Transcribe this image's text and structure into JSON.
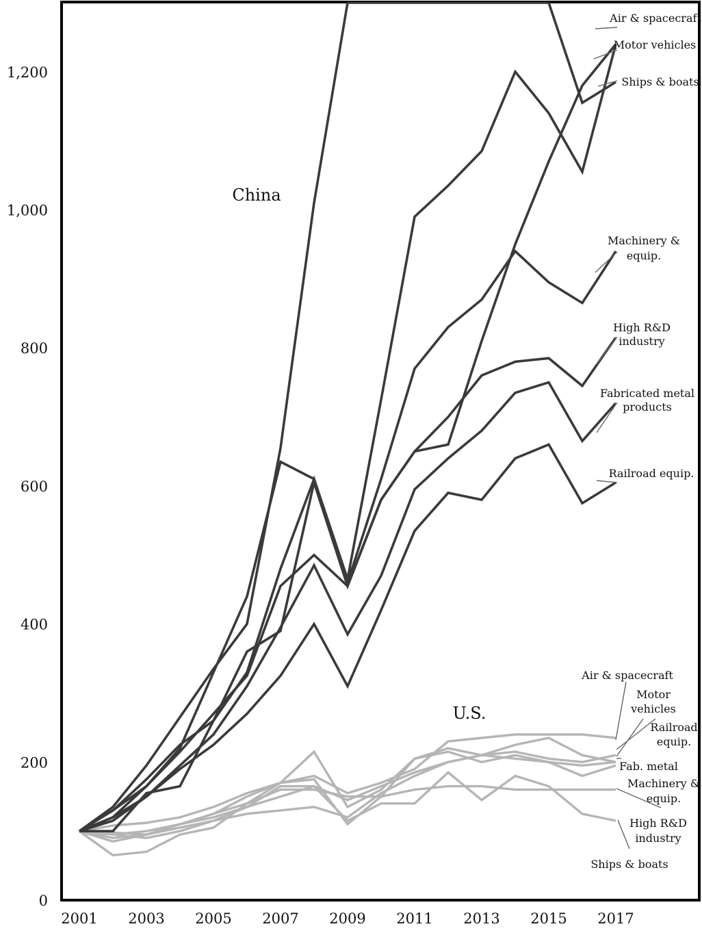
{
  "chart_data": {
    "type": "line",
    "x": [
      2001,
      2002,
      2003,
      2004,
      2005,
      2006,
      2007,
      2008,
      2009,
      2010,
      2011,
      2012,
      2013,
      2014,
      2015,
      2016,
      2017
    ],
    "xtick_labels": [
      "2001",
      "2003",
      "2005",
      "2007",
      "2009",
      "2011",
      "2013",
      "2015",
      "2017"
    ],
    "ytick_labels": [
      "0",
      "200",
      "400",
      "600",
      "800",
      "1,000",
      "1,200"
    ],
    "ylim": [
      0,
      1300
    ],
    "xlim": [
      2000.5,
      2019.2
    ],
    "group_labels": {
      "china": "China",
      "us": "U.S."
    },
    "colors": {
      "china": "#3a3a3a",
      "us": "#b5b5b5"
    },
    "series": [
      {
        "group": "china",
        "name": "Air & spacecraft",
        "values": [
          100,
          135,
          195,
          265,
          335,
          400,
          655,
          1010,
          1300,
          1300,
          1300,
          1300,
          1300,
          1300,
          1300,
          1155,
          1185
        ]
      },
      {
        "group": "china",
        "name": "Motor vehicles",
        "values": [
          100,
          100,
          155,
          165,
          260,
          360,
          390,
          605,
          455,
          580,
          650,
          660,
          810,
          950,
          1070,
          1180,
          1240
        ]
      },
      {
        "group": "china",
        "name": "Ships & boats",
        "values": [
          100,
          130,
          165,
          220,
          330,
          440,
          635,
          610,
          465,
          725,
          990,
          1035,
          1085,
          1200,
          1140,
          1055,
          1240
        ]
      },
      {
        "group": "china",
        "name": "Machinery & equip.",
        "values": [
          100,
          130,
          175,
          225,
          260,
          330,
          480,
          610,
          460,
          610,
          770,
          830,
          870,
          940,
          895,
          865,
          940
        ]
      },
      {
        "group": "china",
        "name": "High R&D industry",
        "values": [
          100,
          120,
          165,
          215,
          270,
          325,
          455,
          500,
          455,
          580,
          650,
          700,
          760,
          780,
          785,
          745,
          815
        ]
      },
      {
        "group": "china",
        "name": "Fabricated metal products",
        "values": [
          100,
          115,
          150,
          195,
          240,
          310,
          395,
          485,
          385,
          470,
          595,
          640,
          680,
          735,
          750,
          665,
          720
        ]
      },
      {
        "group": "china",
        "name": "Railroad equip.",
        "values": [
          100,
          120,
          150,
          190,
          225,
          270,
          325,
          400,
          310,
          420,
          535,
          590,
          580,
          640,
          660,
          575,
          605
        ]
      },
      {
        "group": "us",
        "name": "Air & spacecraft",
        "values": [
          100,
          108,
          112,
          120,
          135,
          155,
          170,
          180,
          155,
          170,
          190,
          230,
          235,
          240,
          240,
          240,
          235
        ]
      },
      {
        "group": "us",
        "name": "Motor vehicles",
        "values": [
          100,
          90,
          95,
          105,
          115,
          125,
          130,
          135,
          120,
          155,
          180,
          200,
          210,
          225,
          235,
          210,
          200
        ]
      },
      {
        "group": "us",
        "name": "Railroad equip.",
        "values": [
          100,
          85,
          95,
          110,
          125,
          150,
          170,
          175,
          110,
          150,
          205,
          220,
          210,
          205,
          200,
          180,
          195
        ]
      },
      {
        "group": "us",
        "name": "Fab. metal",
        "values": [
          100,
          95,
          90,
          100,
          115,
          135,
          150,
          165,
          145,
          165,
          185,
          200,
          210,
          215,
          205,
          200,
          210
        ]
      },
      {
        "group": "us",
        "name": "Machinery & equip.",
        "values": [
          100,
          95,
          100,
          110,
          125,
          140,
          160,
          160,
          150,
          150,
          160,
          165,
          165,
          160,
          160,
          160,
          160
        ]
      },
      {
        "group": "us",
        "name": "High R&D industry",
        "values": [
          100,
          98,
          95,
          110,
          120,
          135,
          165,
          165,
          115,
          140,
          140,
          185,
          145,
          180,
          165,
          125,
          115
        ]
      },
      {
        "group": "us",
        "name": "Ships & boats",
        "values": [
          100,
          65,
          70,
          95,
          105,
          140,
          170,
          215,
          135,
          160,
          205,
          215,
          200,
          210,
          200,
          195,
          200
        ]
      }
    ],
    "annotations": [
      {
        "text": "China"
      },
      {
        "text": "U.S."
      },
      {
        "text": "Air & spacecraft"
      },
      {
        "text": "Motor vehicles"
      },
      {
        "text": "Ships & boats"
      },
      {
        "text": "Machinery &"
      },
      {
        "text": "equip."
      },
      {
        "text": "High R&D"
      },
      {
        "text": "industry"
      },
      {
        "text": "Fabricated metal"
      },
      {
        "text": "products"
      },
      {
        "text": "Railroad equip."
      },
      {
        "text": "Air & spacecraft"
      },
      {
        "text": "Motor"
      },
      {
        "text": "vehicles"
      },
      {
        "text": "Railroad"
      },
      {
        "text": "equip."
      },
      {
        "text": "Fab. metal"
      },
      {
        "text": "Machinery &"
      },
      {
        "text": "equip."
      },
      {
        "text": "High R&D"
      },
      {
        "text": "industry"
      },
      {
        "text": "Ships & boats"
      }
    ]
  }
}
